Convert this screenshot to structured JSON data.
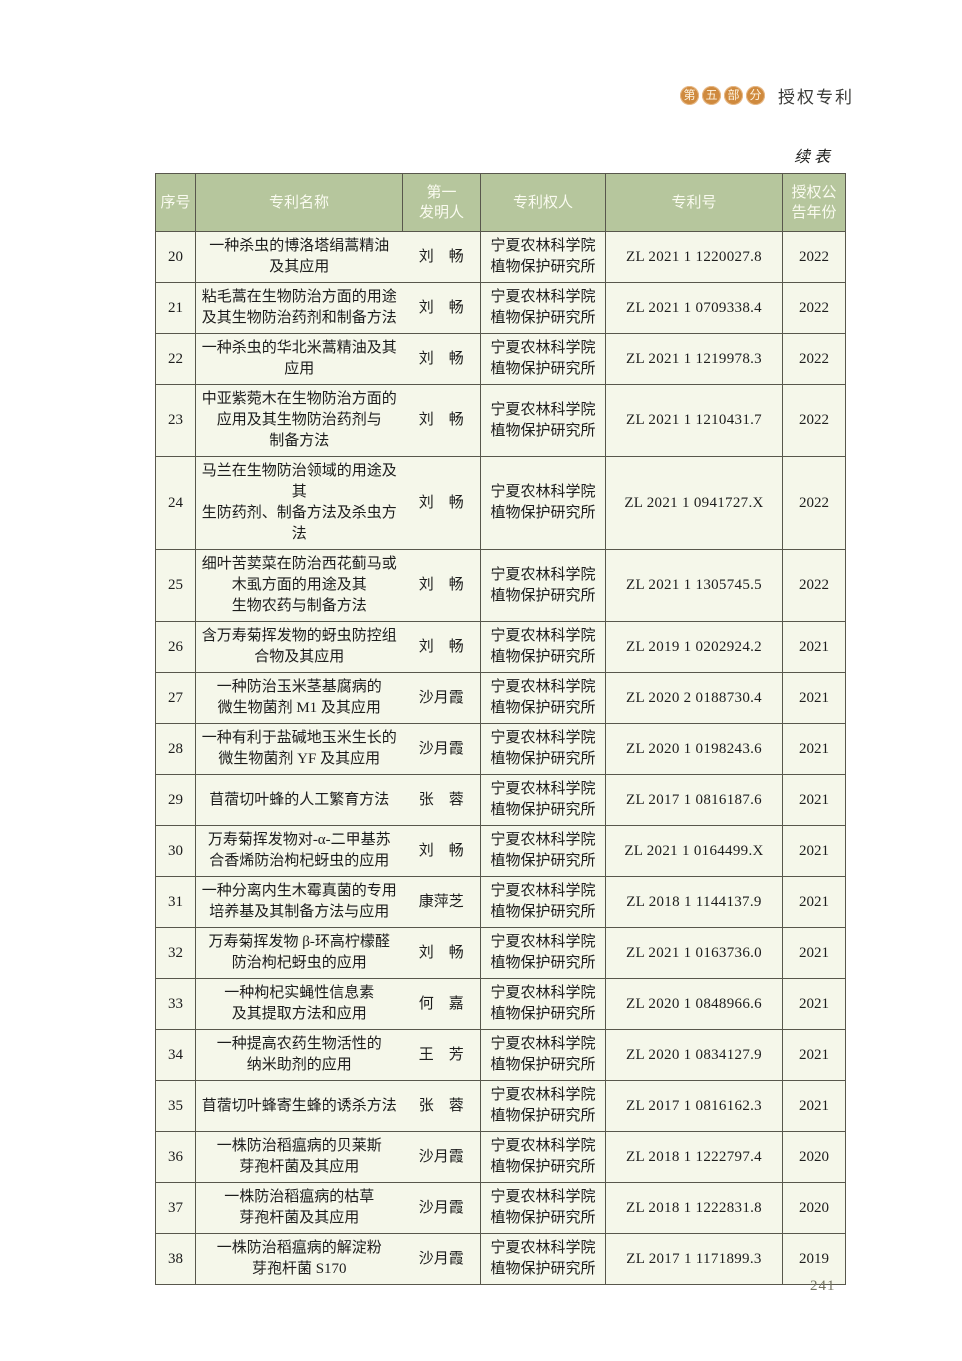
{
  "page_header": {
    "part_badge_chars": [
      "第",
      "五",
      "部",
      "分"
    ],
    "part_badge_name": "第五部分",
    "section_title": "授权专利"
  },
  "continue_label": "续表",
  "page_number": "241",
  "colors": {
    "header_bg": "#b6c69d",
    "header_text": "#fafbf0",
    "body_bg": "#f5f7ea",
    "border": "#58574c",
    "badge_orange": "#cf8a3e"
  },
  "table": {
    "columns": [
      {
        "key": "no",
        "lines": [
          "序号"
        ]
      },
      {
        "key": "name",
        "lines": [
          "专利名称"
        ]
      },
      {
        "key": "inventor",
        "lines": [
          "第一",
          "发明人"
        ]
      },
      {
        "key": "owner",
        "lines": [
          "专利权人"
        ]
      },
      {
        "key": "patent_no",
        "lines": [
          "专利号"
        ]
      },
      {
        "key": "year",
        "lines": [
          "授权公",
          "告年份"
        ]
      }
    ],
    "rows": [
      {
        "no": "20",
        "name_lines": [
          "一种杀虫的博洛塔绢蒿精油",
          "及其应用"
        ],
        "inventor": "刘　畅",
        "owner_lines": [
          "宁夏农林科学院",
          "植物保护研究所"
        ],
        "patent_no": "ZL 2021 1 1220027.8",
        "year": "2022"
      },
      {
        "no": "21",
        "name_lines": [
          "粘毛蒿在生物防治方面的用途",
          "及其生物防治药剂和制备方法"
        ],
        "inventor": "刘　畅",
        "owner_lines": [
          "宁夏农林科学院",
          "植物保护研究所"
        ],
        "patent_no": "ZL 2021 1 0709338.4",
        "year": "2022"
      },
      {
        "no": "22",
        "name_lines": [
          "一种杀虫的华北米蒿精油及其",
          "应用"
        ],
        "inventor": "刘　畅",
        "owner_lines": [
          "宁夏农林科学院",
          "植物保护研究所"
        ],
        "patent_no": "ZL 2021 1 1219978.3",
        "year": "2022"
      },
      {
        "no": "23",
        "name_lines": [
          "中亚紫菀木在生物防治方面的",
          "应用及其生物防治药剂与",
          "制备方法"
        ],
        "inventor": "刘　畅",
        "owner_lines": [
          "宁夏农林科学院",
          "植物保护研究所"
        ],
        "patent_no": "ZL 2021 1 1210431.7",
        "year": "2022"
      },
      {
        "no": "24",
        "name_lines": [
          "马兰在生物防治领域的用途及其",
          "生防药剂、制备方法及杀虫方法"
        ],
        "inventor": "刘　畅",
        "owner_lines": [
          "宁夏农林科学院",
          "植物保护研究所"
        ],
        "patent_no": "ZL 2021 1 0941727.X",
        "year": "2022"
      },
      {
        "no": "25",
        "name_lines": [
          "细叶苦荬菜在防治西花蓟马或",
          "木虱方面的用途及其",
          "生物农药与制备方法"
        ],
        "inventor": "刘　畅",
        "owner_lines": [
          "宁夏农林科学院",
          "植物保护研究所"
        ],
        "patent_no": "ZL 2021 1 1305745.5",
        "year": "2022"
      },
      {
        "no": "26",
        "name_lines": [
          "含万寿菊挥发物的蚜虫防控组",
          "合物及其应用"
        ],
        "inventor": "刘　畅",
        "owner_lines": [
          "宁夏农林科学院",
          "植物保护研究所"
        ],
        "patent_no": "ZL 2019 1 0202924.2",
        "year": "2021"
      },
      {
        "no": "27",
        "name_lines": [
          "一种防治玉米茎基腐病的",
          "微生物菌剂 M1 及其应用"
        ],
        "inventor": "沙月霞",
        "owner_lines": [
          "宁夏农林科学院",
          "植物保护研究所"
        ],
        "patent_no": "ZL 2020 2 0188730.4",
        "year": "2021"
      },
      {
        "no": "28",
        "name_lines": [
          "一种有利于盐碱地玉米生长的",
          "微生物菌剂 YF 及其应用"
        ],
        "inventor": "沙月霞",
        "owner_lines": [
          "宁夏农林科学院",
          "植物保护研究所"
        ],
        "patent_no": "ZL 2020 1 0198243.6",
        "year": "2021"
      },
      {
        "no": "29",
        "name_lines": [
          "苜蓿切叶蜂的人工繁育方法"
        ],
        "inventor": "张　蓉",
        "owner_lines": [
          "宁夏农林科学院",
          "植物保护研究所"
        ],
        "patent_no": "ZL 2017 1 0816187.6",
        "year": "2021"
      },
      {
        "no": "30",
        "name_lines": [
          "万寿菊挥发物对-α-二甲基苏",
          "合香烯防治枸杞蚜虫的应用"
        ],
        "inventor": "刘　畅",
        "owner_lines": [
          "宁夏农林科学院",
          "植物保护研究所"
        ],
        "patent_no": "ZL 2021 1 0164499.X",
        "year": "2021"
      },
      {
        "no": "31",
        "name_lines": [
          "一种分离内生木霉真菌的专用",
          "培养基及其制备方法与应用"
        ],
        "inventor": "康萍芝",
        "owner_lines": [
          "宁夏农林科学院",
          "植物保护研究所"
        ],
        "patent_no": "ZL 2018 1 1144137.9",
        "year": "2021"
      },
      {
        "no": "32",
        "name_lines": [
          "万寿菊挥发物 β-环高柠檬醛",
          "防治枸杞蚜虫的应用"
        ],
        "inventor": "刘　畅",
        "owner_lines": [
          "宁夏农林科学院",
          "植物保护研究所"
        ],
        "patent_no": "ZL 2021 1 0163736.0",
        "year": "2021"
      },
      {
        "no": "33",
        "name_lines": [
          "一种枸杞实蝇性信息素",
          "及其提取方法和应用"
        ],
        "inventor": "何　嘉",
        "owner_lines": [
          "宁夏农林科学院",
          "植物保护研究所"
        ],
        "patent_no": "ZL 2020 1 0848966.6",
        "year": "2021"
      },
      {
        "no": "34",
        "name_lines": [
          "一种提高农药生物活性的",
          "纳米助剂的应用"
        ],
        "inventor": "王　芳",
        "owner_lines": [
          "宁夏农林科学院",
          "植物保护研究所"
        ],
        "patent_no": "ZL 2020 1 0834127.9",
        "year": "2021"
      },
      {
        "no": "35",
        "name_lines": [
          "苜蓿切叶蜂寄生蜂的诱杀方法"
        ],
        "inventor": "张　蓉",
        "owner_lines": [
          "宁夏农林科学院",
          "植物保护研究所"
        ],
        "patent_no": "ZL 2017 1 0816162.3",
        "year": "2021"
      },
      {
        "no": "36",
        "name_lines": [
          "一株防治稻瘟病的贝莱斯",
          "芽孢杆菌及其应用"
        ],
        "inventor": "沙月霞",
        "owner_lines": [
          "宁夏农林科学院",
          "植物保护研究所"
        ],
        "patent_no": "ZL 2018 1 1222797.4",
        "year": "2020"
      },
      {
        "no": "37",
        "name_lines": [
          "一株防治稻瘟病的枯草",
          "芽孢杆菌及其应用"
        ],
        "inventor": "沙月霞",
        "owner_lines": [
          "宁夏农林科学院",
          "植物保护研究所"
        ],
        "patent_no": "ZL 2018 1 1222831.8",
        "year": "2020"
      },
      {
        "no": "38",
        "name_lines": [
          "一株防治稻瘟病的解淀粉",
          "芽孢杆菌 S170"
        ],
        "inventor": "沙月霞",
        "owner_lines": [
          "宁夏农林科学院",
          "植物保护研究所"
        ],
        "patent_no": "ZL 2017 1 1171899.3",
        "year": "2019"
      }
    ]
  }
}
